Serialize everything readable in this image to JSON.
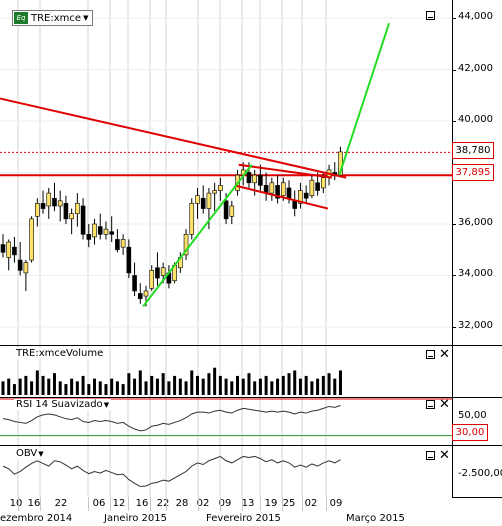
{
  "main": {
    "legend_eq": "Eq",
    "legend_symbol": "TRE:xmce",
    "y_ticks": [
      "44,000",
      "42,000",
      "40,000",
      "38,000",
      "36,000",
      "34,000",
      "32,000"
    ],
    "price_last": "38,780",
    "price_level": "37,895",
    "y_range": [
      31.3,
      44.7
    ],
    "candles": [
      [
        35.2,
        35.6,
        34.7,
        34.9
      ],
      [
        34.7,
        35.4,
        34.2,
        35.3
      ],
      [
        35.1,
        35.5,
        34.5,
        34.8
      ],
      [
        34.6,
        35.3,
        34.0,
        34.2
      ],
      [
        34.1,
        34.6,
        33.4,
        34.5
      ],
      [
        34.6,
        36.3,
        34.5,
        36.2
      ],
      [
        36.3,
        37.0,
        35.9,
        36.8
      ],
      [
        36.8,
        37.3,
        36.4,
        36.6
      ],
      [
        36.7,
        37.4,
        36.2,
        37.2
      ],
      [
        37.0,
        37.6,
        36.5,
        36.7
      ],
      [
        36.7,
        37.3,
        36.1,
        36.9
      ],
      [
        36.8,
        37.1,
        36.0,
        36.2
      ],
      [
        36.2,
        36.6,
        35.6,
        36.4
      ],
      [
        36.4,
        37.2,
        35.9,
        36.8
      ],
      [
        36.7,
        37.0,
        35.4,
        35.6
      ],
      [
        35.6,
        36.0,
        35.1,
        35.4
      ],
      [
        35.5,
        36.2,
        35.2,
        36.0
      ],
      [
        35.9,
        36.4,
        35.4,
        35.6
      ],
      [
        35.6,
        36.1,
        35.4,
        35.8
      ],
      [
        35.7,
        36.3,
        35.3,
        35.6
      ],
      [
        35.4,
        35.8,
        34.9,
        35.0
      ],
      [
        35.1,
        35.6,
        34.8,
        35.4
      ],
      [
        35.1,
        35.4,
        33.9,
        34.1
      ],
      [
        34.0,
        34.5,
        33.2,
        33.4
      ],
      [
        33.3,
        33.7,
        32.9,
        33.1
      ],
      [
        33.2,
        33.6,
        32.8,
        33.4
      ],
      [
        33.5,
        34.4,
        33.4,
        34.2
      ],
      [
        34.3,
        34.9,
        33.6,
        33.9
      ],
      [
        34.0,
        34.5,
        33.7,
        34.3
      ],
      [
        34.1,
        34.4,
        33.5,
        33.7
      ],
      [
        33.8,
        34.5,
        33.7,
        34.4
      ],
      [
        34.3,
        34.9,
        34.1,
        34.7
      ],
      [
        34.8,
        35.8,
        34.6,
        35.6
      ],
      [
        35.6,
        37.0,
        35.4,
        36.8
      ],
      [
        36.8,
        37.4,
        36.2,
        37.1
      ],
      [
        37.0,
        37.5,
        36.4,
        36.6
      ],
      [
        36.6,
        37.4,
        35.8,
        37.2
      ],
      [
        37.2,
        37.6,
        36.5,
        37.3
      ],
      [
        37.3,
        37.8,
        36.9,
        37.5
      ],
      [
        36.9,
        37.2,
        36.0,
        36.2
      ],
      [
        36.3,
        36.9,
        36.0,
        36.7
      ],
      [
        37.3,
        38.1,
        37.1,
        37.9
      ],
      [
        37.9,
        38.4,
        37.5,
        38.1
      ],
      [
        38.0,
        38.4,
        37.4,
        37.6
      ],
      [
        37.6,
        38.1,
        37.1,
        37.9
      ],
      [
        37.9,
        38.3,
        37.3,
        37.5
      ],
      [
        37.5,
        38.0,
        36.9,
        37.2
      ],
      [
        37.2,
        37.8,
        36.9,
        37.6
      ],
      [
        37.5,
        37.9,
        36.8,
        37.0
      ],
      [
        37.1,
        37.8,
        36.9,
        37.6
      ],
      [
        37.4,
        37.7,
        36.8,
        37.0
      ],
      [
        36.9,
        37.3,
        36.3,
        36.6
      ],
      [
        36.8,
        37.6,
        36.6,
        37.3
      ],
      [
        37.2,
        37.5,
        36.8,
        37.0
      ],
      [
        37.1,
        37.9,
        37.0,
        37.7
      ],
      [
        37.6,
        38.0,
        37.1,
        37.3
      ],
      [
        37.4,
        38.0,
        37.2,
        37.8
      ],
      [
        37.8,
        38.3,
        37.5,
        38.1
      ],
      [
        38.0,
        38.4,
        37.7,
        37.9
      ],
      [
        37.9,
        39.0,
        37.8,
        38.8
      ]
    ],
    "lines": [
      {
        "color": "#e00000",
        "pts": [
          [
            -3,
            41.0
          ],
          [
            60,
            37.8
          ]
        ]
      },
      {
        "color": "#e00000",
        "pts": [
          [
            40.5,
            37.5
          ],
          [
            56.8,
            36.6
          ]
        ]
      },
      {
        "color": "#e00000",
        "pts": [
          [
            41.2,
            38.3
          ],
          [
            57.5,
            37.8
          ]
        ]
      },
      {
        "color": "#22dd22",
        "pts": [
          [
            24.5,
            32.8
          ],
          [
            43.5,
            38.3
          ]
        ]
      },
      {
        "color": "#22dd22",
        "pts": [
          [
            58.8,
            37.9
          ],
          [
            67.5,
            43.8
          ]
        ]
      }
    ]
  },
  "volume": {
    "title": "TRE:xmceVolume",
    "bars": [
      5,
      6,
      4,
      6,
      7,
      5,
      9,
      7,
      6,
      8,
      5,
      4,
      6,
      5,
      7,
      4,
      6,
      5,
      4,
      6,
      5,
      4,
      8,
      6,
      9,
      5,
      7,
      6,
      8,
      5,
      7,
      6,
      5,
      9,
      7,
      6,
      8,
      10,
      7,
      6,
      5,
      7,
      6,
      8,
      5,
      6,
      7,
      5,
      6,
      7,
      8,
      9,
      6,
      7,
      5,
      6,
      7,
      8,
      6,
      9
    ]
  },
  "rsi": {
    "title": "RSI 14 Suavizado",
    "ticks": [
      "50,00"
    ],
    "level_badge": "30,00",
    "range": [
      20,
      70
    ],
    "values": [
      48,
      47,
      45,
      44,
      43,
      46,
      50,
      52,
      53,
      52,
      50,
      48,
      47,
      49,
      45,
      44,
      46,
      45,
      46,
      45,
      43,
      44,
      40,
      37,
      35,
      36,
      40,
      41,
      43,
      42,
      44,
      46,
      49,
      53,
      55,
      55,
      54,
      56,
      57,
      55,
      54,
      57,
      59,
      58,
      57,
      56,
      55,
      56,
      55,
      56,
      55,
      53,
      55,
      54,
      56,
      57,
      59,
      61,
      60,
      62
    ]
  },
  "obv": {
    "title": "OBV",
    "ticks": [
      "-2.500,00"
    ],
    "range": [
      -4,
      4
    ],
    "values": [
      1,
      0.5,
      -0.5,
      0,
      0.8,
      1.5,
      2,
      1.5,
      1.0,
      2.0,
      1.8,
      1.2,
      0.5,
      1,
      0.2,
      -0.4,
      0,
      -0.3,
      0.2,
      -0.2,
      -0.6,
      -0.5,
      -1.5,
      -2.2,
      -2.8,
      -2.7,
      -2.2,
      -2.0,
      -1.6,
      -1.8,
      -1.2,
      -0.6,
      0,
      1,
      1.6,
      1.3,
      2.0,
      2.4,
      2.8,
      2.0,
      1.6,
      2.2,
      2.8,
      2.6,
      2.8,
      2.4,
      1.8,
      2.2,
      1.6,
      2.0,
      1.6,
      0.8,
      1.2,
      0.8,
      1.4,
      1.0,
      1.6,
      2.0,
      1.6,
      2.2
    ]
  },
  "xaxis": {
    "days": [
      "10",
      "16",
      "22",
      "06",
      "12",
      "16",
      "22",
      "28",
      "02",
      "09",
      "13",
      "19",
      "25",
      "02",
      "09"
    ],
    "months": [
      "ezembro 2014",
      "Janeiro 2015",
      "Fevereiro 2015",
      "Março 2015"
    ]
  },
  "colors": {
    "up": "#ffe36b",
    "down": "#000000",
    "accent": "#e00000",
    "green": "#22dd22"
  }
}
